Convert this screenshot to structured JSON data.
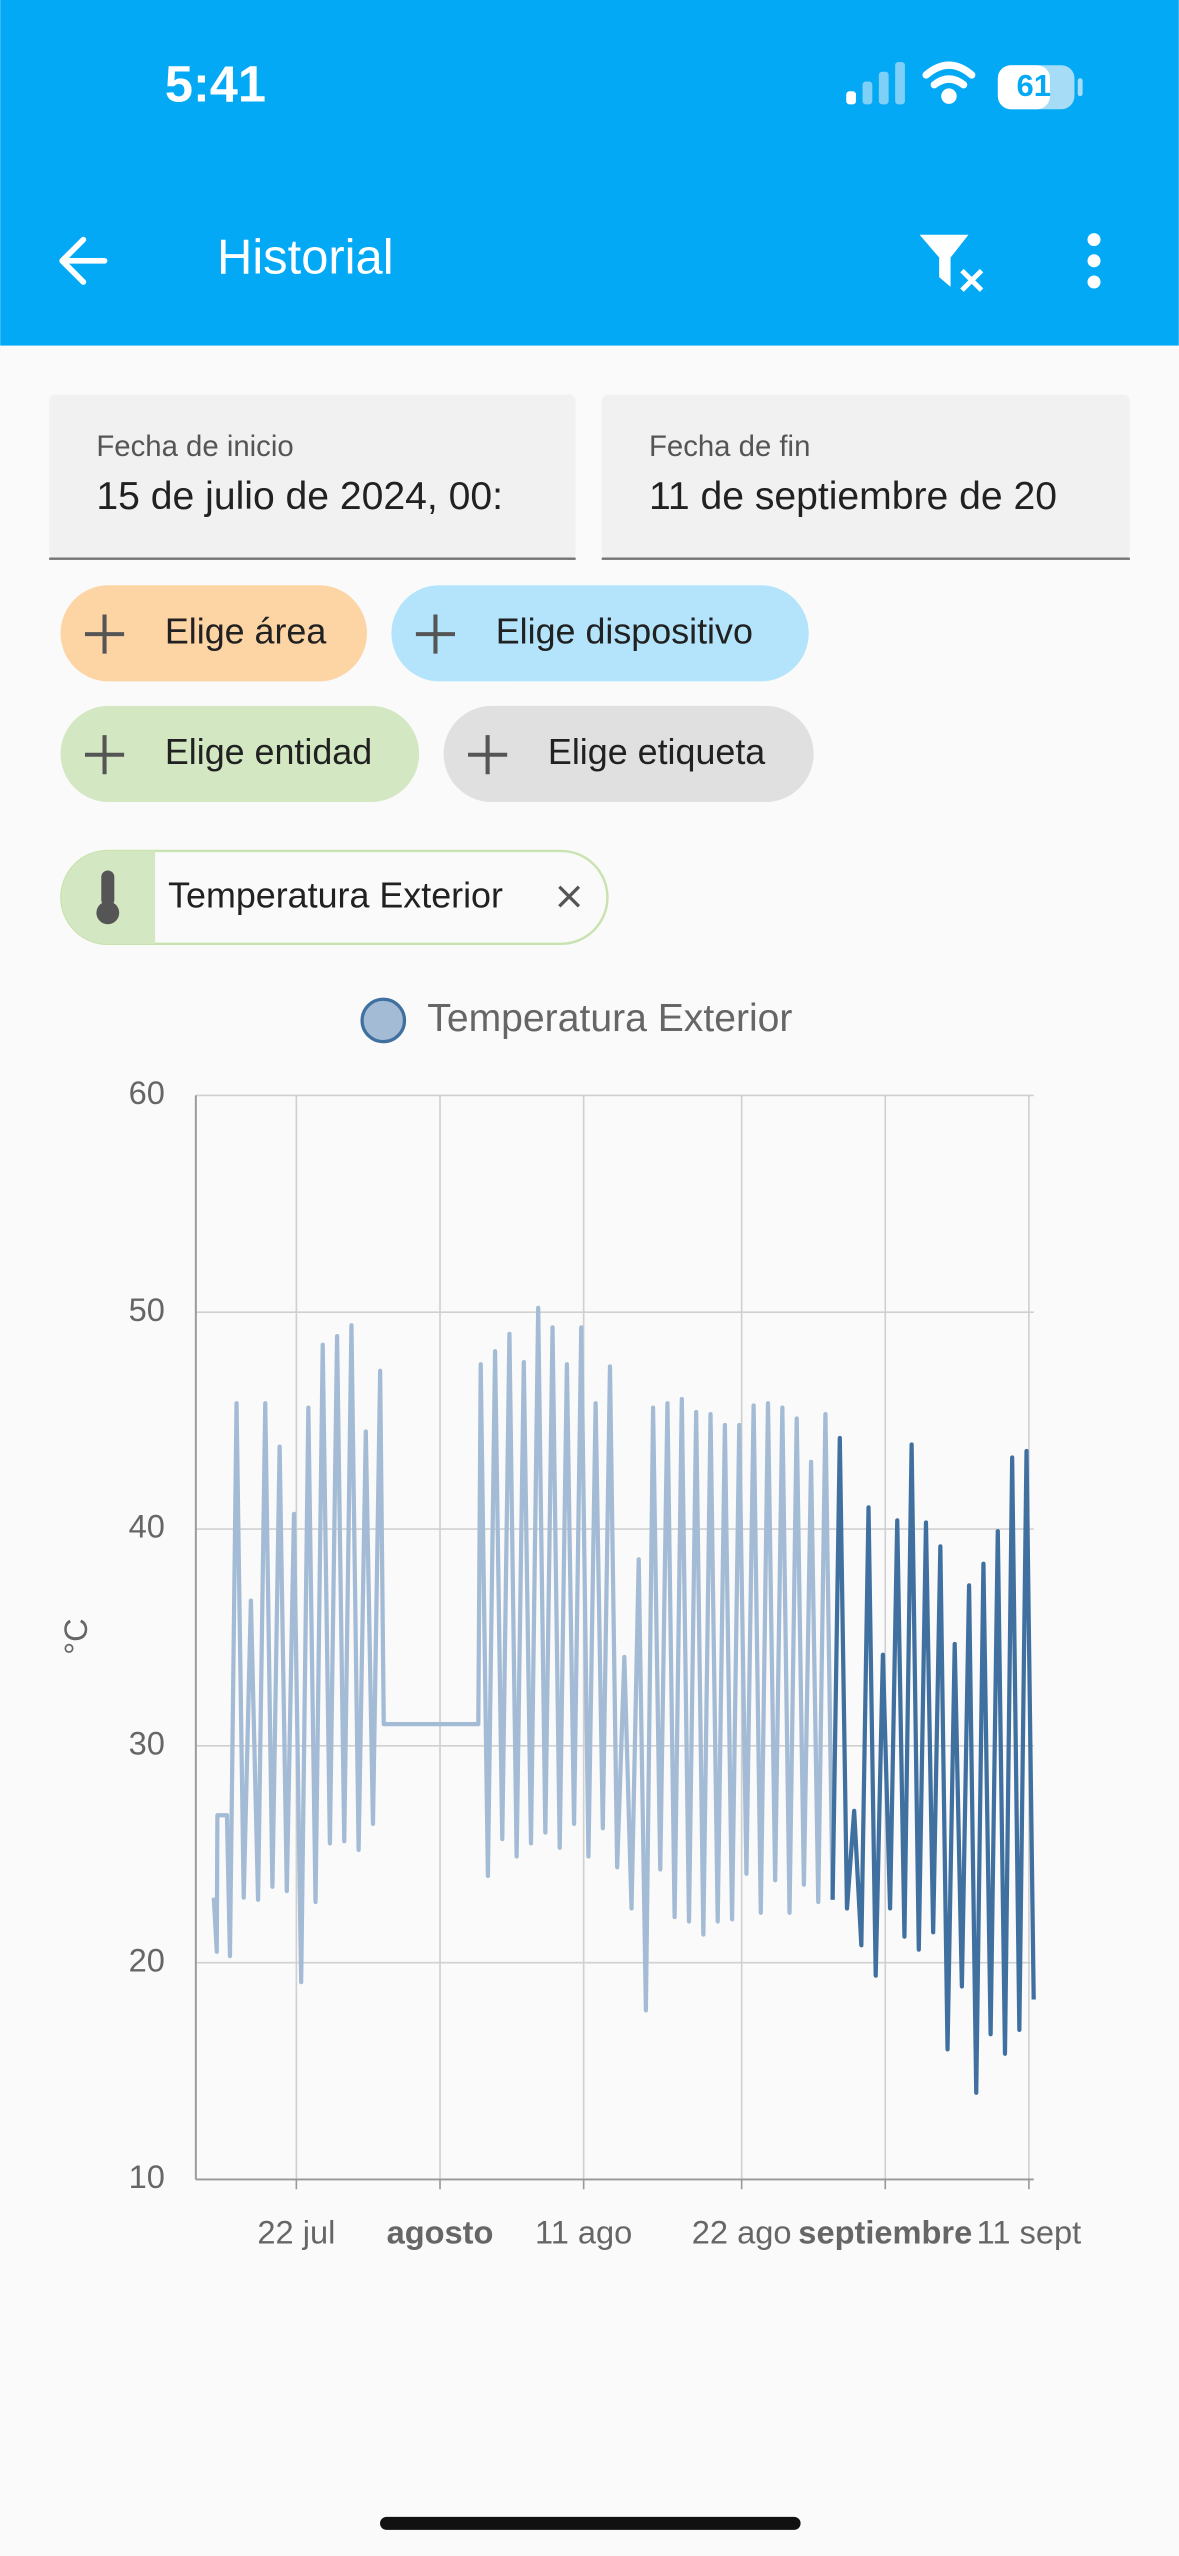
{
  "status_bar": {
    "time": "5:41",
    "battery": "61"
  },
  "app_bar": {
    "title": "Historial"
  },
  "date_fields": [
    {
      "label": "Fecha de inicio",
      "value": "15 de julio de 2024, 00:"
    },
    {
      "label": "Fecha de fin",
      "value": "11 de septiembre de 20"
    }
  ],
  "chips": [
    "Elige área",
    "Elige dispositivo",
    "Elige entidad",
    "Elige etiqueta"
  ],
  "selected_entity": "Temperatura Exterior",
  "chart_data": {
    "type": "line",
    "y_label": "°C",
    "ylim": [
      10,
      60
    ],
    "yticks": [
      10,
      20,
      30,
      40,
      50,
      60
    ],
    "xlim": [
      "2024-07-15T00:00",
      "2024-09-11T08:00"
    ],
    "xticks": [
      {
        "value": "2024-07-22T00:00",
        "label": "22 jul"
      },
      {
        "value": "2024-08-01T00:00",
        "label": "agosto",
        "bold": true
      },
      {
        "value": "2024-08-11T00:00",
        "label": "11 ago"
      },
      {
        "value": "2024-08-22T00:00",
        "label": "22 ago"
      },
      {
        "value": "2024-09-01T00:00",
        "label": "septiembre",
        "bold": true
      },
      {
        "value": "2024-09-11T00:00",
        "label": "11 sept"
      }
    ],
    "grid": true,
    "x": [
      "2024-07-16T06:00",
      "2024-07-16T11:00",
      "2024-07-16T12:00",
      "2024-07-17T04:00",
      "2024-07-17T09:00",
      "2024-07-17T20:00",
      "2024-07-18T08:00",
      "2024-07-18T20:00",
      "2024-07-19T08:00",
      "2024-07-19T20:00",
      "2024-07-20T08:00",
      "2024-07-20T20:00",
      "2024-07-21T08:00",
      "2024-07-21T20:00",
      "2024-07-22T08:00",
      "2024-07-22T20:00",
      "2024-07-23T08:00",
      "2024-07-23T20:00",
      "2024-07-24T08:00",
      "2024-07-24T20:00",
      "2024-07-25T08:00",
      "2024-07-25T20:00",
      "2024-07-26T08:00",
      "2024-07-26T20:00",
      "2024-07-27T08:00",
      "2024-07-27T20:00",
      "2024-07-28T02:00",
      "2024-08-03T16:00",
      "2024-08-03T20:00",
      "2024-08-04T08:00",
      "2024-08-04T20:00",
      "2024-08-05T08:00",
      "2024-08-05T20:00",
      "2024-08-06T08:00",
      "2024-08-06T20:00",
      "2024-08-07T08:00",
      "2024-08-07T20:00",
      "2024-08-08T08:00",
      "2024-08-08T20:00",
      "2024-08-09T08:00",
      "2024-08-09T20:00",
      "2024-08-10T08:00",
      "2024-08-10T20:00",
      "2024-08-11T08:00",
      "2024-08-11T20:00",
      "2024-08-12T08:00",
      "2024-08-12T20:00",
      "2024-08-13T08:00",
      "2024-08-13T20:00",
      "2024-08-14T08:00",
      "2024-08-14T20:00",
      "2024-08-15T08:00",
      "2024-08-15T20:00",
      "2024-08-16T08:00",
      "2024-08-16T20:00",
      "2024-08-17T08:00",
      "2024-08-17T20:00",
      "2024-08-18T08:00",
      "2024-08-18T20:00",
      "2024-08-19T08:00",
      "2024-08-19T20:00",
      "2024-08-20T08:00",
      "2024-08-20T20:00",
      "2024-08-21T08:00",
      "2024-08-21T20:00",
      "2024-08-22T08:00",
      "2024-08-22T20:00",
      "2024-08-23T08:00",
      "2024-08-23T20:00",
      "2024-08-24T08:00",
      "2024-08-24T20:00",
      "2024-08-25T08:00",
      "2024-08-25T20:00",
      "2024-08-26T08:00",
      "2024-08-26T20:00",
      "2024-08-27T08:00",
      "2024-08-27T20:00",
      "2024-08-28T08:00",
      "2024-08-28T20:00",
      "2024-08-29T08:00",
      "2024-08-29T20:00",
      "2024-08-30T08:00",
      "2024-08-30T20:00",
      "2024-08-31T08:00",
      "2024-08-31T20:00",
      "2024-09-01T08:00",
      "2024-09-01T20:00",
      "2024-09-02T08:00",
      "2024-09-02T20:00",
      "2024-09-03T08:00",
      "2024-09-03T20:00",
      "2024-09-04T08:00",
      "2024-09-04T20:00",
      "2024-09-05T08:00",
      "2024-09-05T20:00",
      "2024-09-06T08:00",
      "2024-09-06T20:00",
      "2024-09-07T08:00",
      "2024-09-07T20:00",
      "2024-09-08T08:00",
      "2024-09-08T20:00",
      "2024-09-09T08:00",
      "2024-09-09T20:00",
      "2024-09-10T08:00",
      "2024-09-10T20:00",
      "2024-09-11T08:00"
    ],
    "series": [
      {
        "name": "Temperatura Exterior",
        "color": "#a3bbd5",
        "values": [
          23.0,
          20.5,
          26.8,
          26.8,
          20.3,
          45.8,
          23.0,
          36.7,
          22.9,
          45.8,
          23.5,
          43.8,
          23.3,
          40.7,
          19.1,
          45.6,
          22.8,
          48.5,
          25.5,
          48.9,
          25.6,
          49.4,
          25.2,
          44.5,
          26.4,
          47.3,
          31.0,
          31.0,
          47.6,
          24.0,
          48.2,
          25.7,
          49.0,
          24.9,
          47.7,
          25.5,
          50.2,
          26.0,
          49.3,
          25.3,
          47.6,
          26.4,
          49.3,
          24.9,
          45.8,
          26.2,
          47.5,
          24.4,
          34.1,
          22.5,
          38.6,
          17.8,
          45.6,
          24.3,
          45.8,
          22.1,
          46.0,
          21.9,
          45.4,
          21.3,
          45.3,
          21.9,
          44.8,
          22.0,
          44.8,
          24.1,
          45.7,
          22.3,
          45.8,
          23.8,
          45.6,
          22.3,
          45.1,
          23.6,
          43.1,
          22.8,
          45.3,
          22.9,
          null,
          null,
          null,
          null,
          null,
          null,
          null,
          null,
          null,
          null,
          null,
          null,
          null,
          null,
          null,
          null,
          null,
          null,
          null,
          null,
          null,
          null,
          null,
          null,
          null,
          null,
          null,
          null
        ]
      },
      {
        "color": "#40709f",
        "values": [
          null,
          null,
          null,
          null,
          null,
          null,
          null,
          null,
          null,
          null,
          null,
          null,
          null,
          null,
          null,
          null,
          null,
          null,
          null,
          null,
          null,
          null,
          null,
          null,
          null,
          null,
          null,
          null,
          null,
          null,
          null,
          null,
          null,
          null,
          null,
          null,
          null,
          null,
          null,
          null,
          null,
          null,
          null,
          null,
          null,
          null,
          null,
          null,
          null,
          null,
          null,
          null,
          null,
          null,
          null,
          null,
          null,
          null,
          null,
          null,
          null,
          null,
          null,
          null,
          null,
          null,
          null,
          null,
          null,
          null,
          null,
          null,
          null,
          null,
          null,
          null,
          null,
          22.9,
          44.2,
          22.5,
          27.0,
          20.8,
          41.0,
          19.4,
          34.2,
          22.5,
          40.4,
          21.2,
          43.9,
          20.6,
          40.3,
          21.4,
          39.2,
          16.0,
          34.7,
          18.9,
          37.4,
          14.0,
          38.4,
          16.7,
          39.9,
          15.8,
          43.3,
          16.9,
          43.6,
          18.3
        ]
      }
    ]
  }
}
